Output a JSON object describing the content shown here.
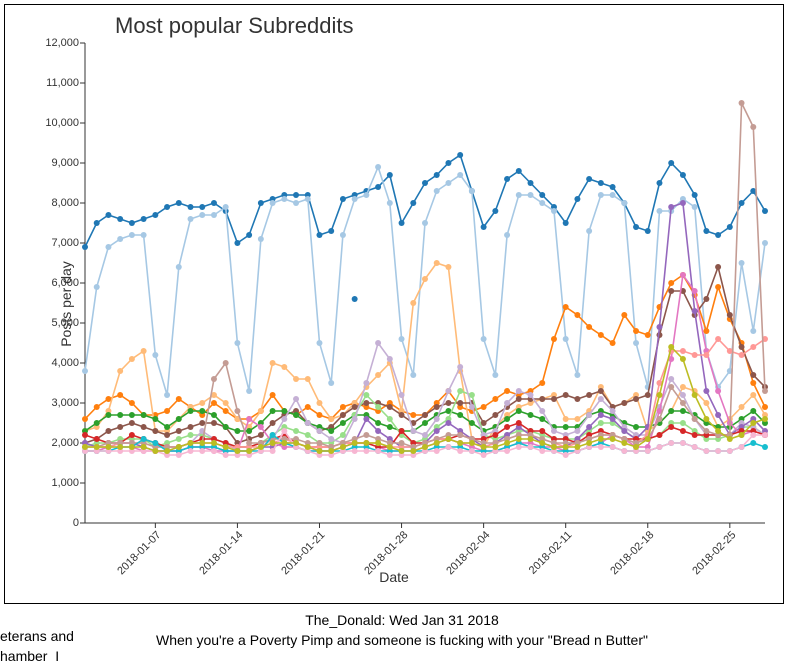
{
  "chart": {
    "type": "line",
    "title": "Most popular Subreddits",
    "xlabel": "Date",
    "ylabel": "Posts per day",
    "title_fontsize": 22,
    "label_fontsize": 14,
    "tick_fontsize": 11,
    "background_color": "#ffffff",
    "border_color": "#000000",
    "ylim": [
      0,
      12000
    ],
    "ytick_step": 1000,
    "ytick_format": "comma",
    "marker_radius": 3,
    "line_width": 1.6,
    "x_dates": [
      "2018-01-01",
      "2018-01-02",
      "2018-01-03",
      "2018-01-04",
      "2018-01-05",
      "2018-01-06",
      "2018-01-07",
      "2018-01-08",
      "2018-01-09",
      "2018-01-10",
      "2018-01-11",
      "2018-01-12",
      "2018-01-13",
      "2018-01-14",
      "2018-01-15",
      "2018-01-16",
      "2018-01-17",
      "2018-01-18",
      "2018-01-19",
      "2018-01-20",
      "2018-01-21",
      "2018-01-22",
      "2018-01-23",
      "2018-01-24",
      "2018-01-25",
      "2018-01-26",
      "2018-01-27",
      "2018-01-28",
      "2018-01-29",
      "2018-01-30",
      "2018-01-31",
      "2018-02-01",
      "2018-02-02",
      "2018-02-03",
      "2018-02-04",
      "2018-02-05",
      "2018-02-06",
      "2018-02-07",
      "2018-02-08",
      "2018-02-09",
      "2018-02-10",
      "2018-02-11",
      "2018-02-12",
      "2018-02-13",
      "2018-02-14",
      "2018-02-15",
      "2018-02-16",
      "2018-02-17",
      "2018-02-18",
      "2018-02-19",
      "2018-02-20",
      "2018-02-21",
      "2018-02-22",
      "2018-02-23",
      "2018-02-24",
      "2018-02-25",
      "2018-02-26",
      "2018-02-27",
      "2018-02-28"
    ],
    "xticks": [
      "2018-01-07",
      "2018-01-14",
      "2018-01-21",
      "2018-01-28",
      "2018-02-04",
      "2018-02-11",
      "2018-02-18",
      "2018-02-25"
    ],
    "series": [
      {
        "name": "s1",
        "color": "#1f77b4",
        "values": [
          6900,
          7500,
          7700,
          7600,
          7500,
          7600,
          7700,
          7900,
          8000,
          7900,
          7900,
          8000,
          7800,
          7000,
          7200,
          8000,
          8100,
          8200,
          8200,
          8200,
          7200,
          7300,
          8100,
          8200,
          8300,
          8400,
          8700,
          7500,
          8000,
          8500,
          8700,
          9000,
          9200,
          8300,
          7400,
          7800,
          8600,
          8800,
          8500,
          8200,
          7900,
          7500,
          8100,
          8600,
          8500,
          8400,
          8000,
          7400,
          7300,
          8500,
          9000,
          8700,
          8200,
          7300,
          7200,
          7400,
          8000,
          8300,
          7800
        ]
      },
      {
        "name": "s1b",
        "color": "#1f77b4",
        "values": [
          null,
          null,
          null,
          null,
          null,
          null,
          null,
          null,
          null,
          null,
          null,
          null,
          null,
          null,
          null,
          null,
          null,
          null,
          null,
          null,
          null,
          null,
          null,
          5600,
          null,
          null,
          null,
          null,
          null,
          null,
          null,
          null,
          null,
          null,
          null,
          null,
          null,
          null,
          null,
          null,
          null,
          null,
          null,
          null,
          null,
          null,
          null,
          null,
          null,
          null,
          null,
          null,
          null,
          null,
          null,
          null,
          null,
          null,
          null
        ]
      },
      {
        "name": "s2",
        "color": "#a6c8e4",
        "values": [
          3800,
          5900,
          6900,
          7100,
          7200,
          7200,
          4200,
          3200,
          6400,
          7600,
          7700,
          7700,
          7900,
          4500,
          3300,
          7100,
          8000,
          8100,
          8000,
          8100,
          4500,
          3500,
          7200,
          8100,
          8200,
          8900,
          8000,
          4600,
          3700,
          7500,
          8300,
          8500,
          8700,
          8300,
          4600,
          3700,
          7200,
          8200,
          8200,
          8000,
          7800,
          4600,
          3700,
          7300,
          8200,
          8200,
          8000,
          4500,
          3400,
          7800,
          7800,
          8100,
          7900,
          4300,
          3400,
          3800,
          6500,
          4800,
          7000
        ]
      },
      {
        "name": "s3",
        "color": "#ff7f0e",
        "values": [
          2600,
          2900,
          3100,
          3200,
          3000,
          2700,
          2700,
          2800,
          3100,
          2900,
          2700,
          3000,
          2800,
          2600,
          2600,
          2800,
          3200,
          2800,
          2700,
          2900,
          2700,
          2600,
          2900,
          3000,
          2900,
          2800,
          3000,
          2800,
          2700,
          2700,
          3000,
          3300,
          2900,
          2800,
          2900,
          3100,
          3300,
          3200,
          3300,
          3500,
          4600,
          5400,
          5200,
          4900,
          4700,
          4500,
          5200,
          4800,
          4700,
          5400,
          6000,
          6200,
          5700,
          4800,
          5900,
          5100,
          4500,
          3500,
          2900
        ]
      },
      {
        "name": "s4",
        "color": "#ffbb78",
        "values": [
          2300,
          2400,
          2800,
          3800,
          4100,
          4300,
          2300,
          2300,
          2600,
          2900,
          3000,
          3200,
          3000,
          2600,
          2400,
          2800,
          4000,
          3900,
          3600,
          3600,
          3000,
          2600,
          2700,
          3000,
          3400,
          3700,
          4000,
          2800,
          5500,
          6100,
          6500,
          6400,
          3800,
          2100,
          1900,
          2400,
          2700,
          2900,
          3000,
          3100,
          3200,
          2600,
          2600,
          2800,
          3400,
          2900,
          3000,
          3200,
          2300,
          2500,
          2800,
          3400,
          3300,
          3000,
          2400,
          2600,
          2900,
          3200,
          2700
        ]
      },
      {
        "name": "s5",
        "color": "#8c564b",
        "values": [
          2000,
          2100,
          2300,
          2400,
          2500,
          2400,
          2300,
          2200,
          2300,
          2400,
          2500,
          2500,
          2400,
          2000,
          2100,
          2200,
          2500,
          2700,
          2800,
          2500,
          2300,
          2400,
          2700,
          2900,
          3000,
          3000,
          2900,
          2700,
          2500,
          2700,
          2900,
          3000,
          3000,
          3000,
          2500,
          2700,
          2900,
          3100,
          3100,
          3100,
          3100,
          3200,
          3100,
          3200,
          3300,
          2900,
          3000,
          3100,
          3200,
          4700,
          5800,
          5800,
          5200,
          5600,
          6400,
          5200,
          4400,
          3700,
          3400
        ]
      },
      {
        "name": "s6",
        "color": "#2ca02c",
        "values": [
          2300,
          2500,
          2700,
          2700,
          2700,
          2700,
          2600,
          2400,
          2600,
          2800,
          2800,
          2700,
          2400,
          2300,
          2300,
          2500,
          2800,
          2800,
          2700,
          2500,
          2400,
          2300,
          2500,
          2700,
          2700,
          2500,
          2400,
          2300,
          2300,
          2500,
          2700,
          2800,
          2700,
          2500,
          2300,
          2400,
          2600,
          2800,
          2700,
          2600,
          2400,
          2400,
          2400,
          2700,
          2800,
          2700,
          2500,
          2400,
          2400,
          2500,
          2800,
          2800,
          2700,
          2500,
          2400,
          2400,
          2600,
          2800,
          2500
        ]
      },
      {
        "name": "s7",
        "color": "#98df8a",
        "values": [
          1900,
          2000,
          2000,
          2100,
          2100,
          2100,
          1900,
          2000,
          2100,
          2200,
          2200,
          2100,
          2000,
          1900,
          1900,
          2000,
          2200,
          2400,
          2300,
          2200,
          2000,
          2000,
          2200,
          2700,
          3200,
          2900,
          2600,
          2200,
          2000,
          2100,
          2400,
          2600,
          3300,
          3200,
          2200,
          2100,
          2200,
          2300,
          2300,
          2200,
          2100,
          2100,
          2100,
          2300,
          2500,
          2500,
          2300,
          2100,
          2100,
          2200,
          2500,
          2500,
          2300,
          2100,
          2100,
          2200,
          2400,
          2400,
          2200
        ]
      },
      {
        "name": "s8",
        "color": "#c5b0d5",
        "values": [
          1800,
          1800,
          1900,
          2000,
          2000,
          1900,
          1800,
          1800,
          1900,
          2000,
          2300,
          2100,
          2000,
          1800,
          1800,
          1900,
          2100,
          2600,
          3100,
          2500,
          2300,
          2100,
          2000,
          2600,
          3500,
          4500,
          4100,
          3200,
          2300,
          2200,
          2600,
          3300,
          3900,
          2900,
          2200,
          2300,
          3000,
          3300,
          3200,
          2800,
          2300,
          2200,
          2300,
          2700,
          3100,
          2800,
          2400,
          2200,
          2200,
          2900,
          3600,
          3200,
          2600,
          2200,
          2200,
          2200,
          2500,
          2400,
          2200
        ]
      },
      {
        "name": "s9",
        "color": "#9467bd",
        "values": [
          2000,
          1900,
          1900,
          2000,
          2000,
          1900,
          1800,
          1800,
          1800,
          1900,
          1900,
          1900,
          1800,
          1800,
          1800,
          1900,
          1900,
          2000,
          2000,
          1900,
          1800,
          1800,
          1900,
          2000,
          2600,
          2300,
          2100,
          1900,
          1900,
          2000,
          2300,
          2500,
          2300,
          2100,
          1900,
          2000,
          2200,
          2400,
          2200,
          2000,
          1900,
          1900,
          2100,
          2400,
          2700,
          2600,
          2300,
          2100,
          2400,
          4900,
          7900,
          8000,
          5300,
          3300,
          2700,
          2200,
          2400,
          2600,
          2300
        ]
      },
      {
        "name": "s10",
        "color": "#e377c2",
        "values": [
          1800,
          1800,
          1900,
          1900,
          1900,
          1800,
          1800,
          1800,
          1800,
          1900,
          1900,
          1800,
          1800,
          1800,
          2600,
          2400,
          2000,
          1900,
          1900,
          1800,
          1800,
          1800,
          1900,
          2000,
          2000,
          1900,
          1800,
          1800,
          1800,
          1900,
          2000,
          2100,
          2000,
          1900,
          1800,
          1800,
          1900,
          2000,
          2000,
          1900,
          1900,
          1800,
          1800,
          1900,
          2000,
          2200,
          2100,
          1900,
          1900,
          2800,
          4100,
          6200,
          5800,
          4300,
          3300,
          2500,
          2200,
          2300,
          2200
        ]
      },
      {
        "name": "s11",
        "color": "#d62728",
        "values": [
          2200,
          2100,
          2000,
          2000,
          2200,
          2100,
          2000,
          1900,
          1900,
          2000,
          2100,
          2100,
          2000,
          1900,
          1900,
          2000,
          2100,
          2200,
          2000,
          1900,
          1900,
          1900,
          2000,
          2000,
          2000,
          1900,
          1900,
          2300,
          2000,
          2000,
          2100,
          2100,
          2200,
          2100,
          2100,
          2200,
          2400,
          2500,
          2300,
          2300,
          2100,
          2100,
          2000,
          2200,
          2300,
          2200,
          2100,
          2100,
          2100,
          2200,
          2400,
          2300,
          2200,
          2200,
          2200,
          2200,
          2300,
          2300,
          2200
        ]
      },
      {
        "name": "s12",
        "color": "#ff9896",
        "values": [
          1900,
          1900,
          1900,
          2000,
          2000,
          2000,
          1900,
          1900,
          1900,
          2000,
          2000,
          2000,
          1900,
          1900,
          1900,
          1900,
          2000,
          2100,
          2000,
          1900,
          1900,
          1900,
          2000,
          2000,
          2000,
          2000,
          1900,
          1900,
          1900,
          2000,
          2100,
          2100,
          2000,
          2000,
          1900,
          2000,
          2100,
          2200,
          2200,
          2100,
          2000,
          1900,
          2000,
          2100,
          2200,
          2200,
          2100,
          2000,
          2200,
          3500,
          4300,
          4300,
          4200,
          4200,
          4600,
          4300,
          4200,
          4400,
          4600
        ]
      },
      {
        "name": "s13",
        "color": "#c49c94",
        "values": [
          1900,
          1900,
          2000,
          2000,
          2000,
          2000,
          1900,
          1900,
          1900,
          2000,
          2000,
          3600,
          4000,
          2800,
          2000,
          2000,
          2100,
          2100,
          2100,
          2000,
          2000,
          1900,
          2000,
          2100,
          2200,
          2100,
          2000,
          2000,
          1900,
          2000,
          2100,
          2200,
          2200,
          2100,
          2000,
          2000,
          2100,
          2200,
          2200,
          2100,
          2000,
          2000,
          2000,
          2100,
          2200,
          2200,
          2100,
          2000,
          2100,
          2600,
          3400,
          3000,
          2600,
          2300,
          2200,
          2200,
          10500,
          9900,
          3300
        ]
      },
      {
        "name": "s14",
        "color": "#17becf",
        "values": [
          1800,
          1800,
          1800,
          1900,
          1900,
          2100,
          2000,
          1800,
          1800,
          1900,
          1900,
          1900,
          1800,
          1800,
          1800,
          1800,
          2200,
          2000,
          1900,
          1800,
          1800,
          1800,
          1800,
          1900,
          1900,
          1800,
          1800,
          1800,
          1800,
          1800,
          1900,
          1900,
          1900,
          1800,
          1800,
          1800,
          1900,
          2000,
          1900,
          1900,
          1800,
          1800,
          1800,
          1900,
          2000,
          1900,
          1800,
          1800,
          1800,
          1900,
          2000,
          2000,
          1900,
          1800,
          1800,
          1800,
          1900,
          2000,
          1900
        ]
      },
      {
        "name": "s15",
        "color": "#f7b6d2",
        "values": [
          1800,
          1800,
          1800,
          1800,
          1800,
          1800,
          1800,
          1700,
          1700,
          1800,
          1800,
          1800,
          1700,
          1700,
          1700,
          1800,
          1800,
          2300,
          1900,
          1800,
          1700,
          1700,
          1800,
          1800,
          1800,
          1800,
          1700,
          1700,
          1700,
          1800,
          1800,
          1900,
          1800,
          1800,
          1700,
          1800,
          1800,
          1900,
          1900,
          1800,
          1800,
          1700,
          1800,
          1900,
          1900,
          1900,
          1800,
          1800,
          1800,
          1900,
          2000,
          2000,
          1900,
          1800,
          1800,
          1800,
          1900,
          2200,
          2200
        ]
      },
      {
        "name": "s16",
        "color": "#bcbd22",
        "values": [
          1900,
          1900,
          1900,
          1900,
          1900,
          1900,
          1800,
          1800,
          1900,
          2000,
          2000,
          2000,
          1900,
          1800,
          1800,
          1900,
          2000,
          2000,
          2000,
          1900,
          1800,
          1800,
          1900,
          2000,
          2000,
          2000,
          1900,
          1800,
          1800,
          1900,
          2000,
          2100,
          2000,
          2000,
          1900,
          1900,
          2000,
          2100,
          2100,
          2000,
          1900,
          1900,
          1900,
          2000,
          2100,
          2100,
          2000,
          1900,
          2100,
          3200,
          4400,
          4100,
          3200,
          2600,
          2300,
          2100,
          2200,
          2500,
          2600
        ]
      }
    ]
  },
  "caption": {
    "line1": "The_Donald: Wed Jan 31 2018",
    "line2": "When you're a Poverty Pimp and someone is fucking with your \"Bread n Butter\"",
    "frag_left_1": "eterans and",
    "frag_left_2": "hamber  I"
  }
}
